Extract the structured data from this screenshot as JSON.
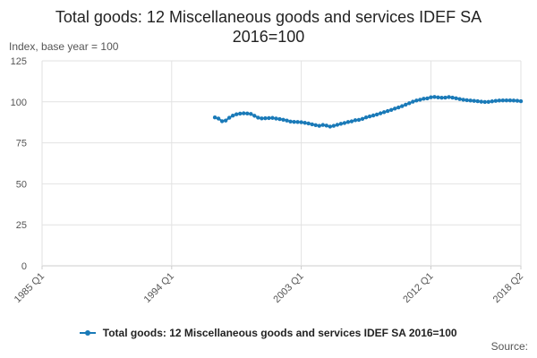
{
  "colors": {
    "series": "#1a7ab8",
    "grid": "#e2e2e2",
    "axis": "#cccccc",
    "tick_text": "#555555"
  },
  "chart_data": {
    "type": "line",
    "title": "Total goods: 12 Miscellaneous goods and services IDEF SA 2016=100",
    "title_lines": [
      "Total goods: 12 Miscellaneous goods and services IDEF SA",
      "2016=100"
    ],
    "ylabel": "Index, base year = 100",
    "xlabel": "",
    "ylim": [
      0,
      125
    ],
    "yticks": [
      0,
      25,
      50,
      75,
      100,
      125
    ],
    "x_range": [
      "1985 Q1",
      "2018 Q2"
    ],
    "xticks": [
      "1985 Q1",
      "1994 Q1",
      "2003 Q1",
      "2012 Q1",
      "2018 Q2"
    ],
    "grid": true,
    "legend_position": "bottom",
    "source_label": "Source:",
    "series": [
      {
        "name": "Total goods: 12 Miscellaneous goods and services IDEF SA 2016=100",
        "x": [
          "1997 Q1",
          "1997 Q2",
          "1997 Q3",
          "1997 Q4",
          "1998 Q1",
          "1998 Q2",
          "1998 Q3",
          "1998 Q4",
          "1999 Q1",
          "1999 Q2",
          "1999 Q3",
          "1999 Q4",
          "2000 Q1",
          "2000 Q2",
          "2000 Q3",
          "2000 Q4",
          "2001 Q1",
          "2001 Q2",
          "2001 Q3",
          "2001 Q4",
          "2002 Q1",
          "2002 Q2",
          "2002 Q3",
          "2002 Q4",
          "2003 Q1",
          "2003 Q2",
          "2003 Q3",
          "2003 Q4",
          "2004 Q1",
          "2004 Q2",
          "2004 Q3",
          "2004 Q4",
          "2005 Q1",
          "2005 Q2",
          "2005 Q3",
          "2005 Q4",
          "2006 Q1",
          "2006 Q2",
          "2006 Q3",
          "2006 Q4",
          "2007 Q1",
          "2007 Q2",
          "2007 Q3",
          "2007 Q4",
          "2008 Q1",
          "2008 Q2",
          "2008 Q3",
          "2008 Q4",
          "2009 Q1",
          "2009 Q2",
          "2009 Q3",
          "2009 Q4",
          "2010 Q1",
          "2010 Q2",
          "2010 Q3",
          "2010 Q4",
          "2011 Q1",
          "2011 Q2",
          "2011 Q3",
          "2011 Q4",
          "2012 Q1",
          "2012 Q2",
          "2012 Q3",
          "2012 Q4",
          "2013 Q1",
          "2013 Q2",
          "2013 Q3",
          "2013 Q4",
          "2014 Q1",
          "2014 Q2",
          "2014 Q3",
          "2014 Q4",
          "2015 Q1",
          "2015 Q2",
          "2015 Q3",
          "2015 Q4",
          "2016 Q1",
          "2016 Q2",
          "2016 Q3",
          "2016 Q4",
          "2017 Q1",
          "2017 Q2",
          "2017 Q3",
          "2017 Q4",
          "2018 Q1",
          "2018 Q2"
        ],
        "values": [
          90.5,
          89.8,
          88.2,
          88.6,
          90.3,
          91.6,
          92.4,
          92.8,
          93.0,
          92.9,
          92.6,
          91.5,
          90.4,
          89.9,
          90.0,
          90.1,
          90.2,
          89.8,
          89.5,
          89.1,
          88.6,
          88.0,
          87.8,
          87.7,
          87.6,
          87.2,
          86.8,
          86.3,
          85.8,
          85.4,
          85.9,
          85.5,
          84.9,
          85.4,
          86.0,
          86.6,
          87.1,
          87.7,
          88.1,
          88.8,
          89.0,
          89.6,
          90.5,
          91.1,
          91.7,
          92.3,
          93.0,
          93.7,
          94.4,
          95.1,
          95.9,
          96.6,
          97.4,
          98.3,
          99.2,
          100.1,
          100.8,
          101.3,
          101.9,
          102.1,
          102.8,
          103.0,
          102.7,
          102.5,
          102.6,
          102.9,
          102.6,
          102.2,
          101.7,
          101.3,
          101.0,
          100.8,
          100.6,
          100.4,
          100.1,
          99.9,
          100.0,
          100.3,
          100.6,
          100.8,
          100.9,
          100.9,
          100.9,
          100.8,
          100.7,
          100.4
        ]
      }
    ]
  }
}
